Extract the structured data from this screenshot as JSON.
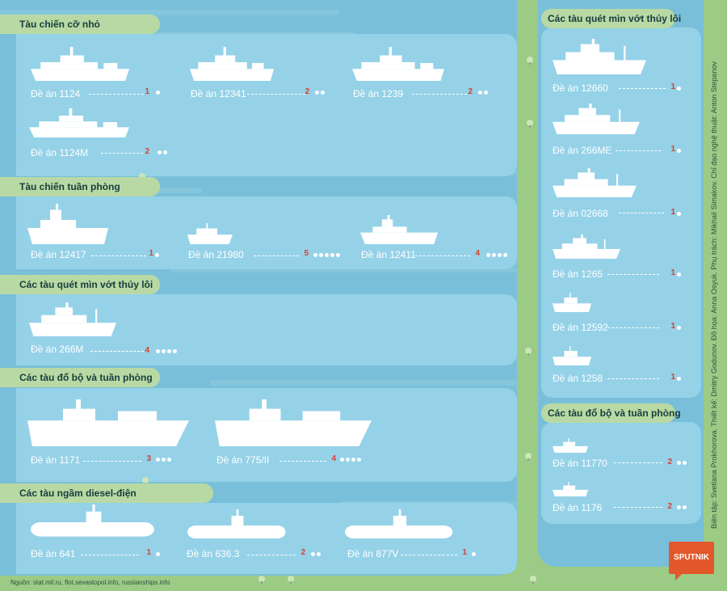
{
  "colors": {
    "background": "#9ccb86",
    "panel": "#79bfd9",
    "card": "#95d2e8",
    "header_tab": "#b9d9a4",
    "count": "#d8402f",
    "ship": "#ffffff",
    "logo": "#e2582b"
  },
  "sections": [
    {
      "title": "Tàu chiến cỡ nhỏ",
      "ships": [
        {
          "name": "Đề án 1124",
          "count": "1",
          "dots": 1,
          "icon": "corvette-icon"
        },
        {
          "name": "Đề án 12341",
          "count": "2",
          "dots": 2,
          "icon": "corvette-icon"
        },
        {
          "name": "Đề án 1239",
          "count": "2",
          "dots": 2,
          "icon": "corvette-icon"
        },
        {
          "name": "Đề án 1124M",
          "count": "2",
          "dots": 2,
          "icon": "corvette-icon"
        }
      ]
    },
    {
      "title": "Tàu chiến tuần phòng",
      "ships": [
        {
          "name": "Đề án 12417",
          "count": "1",
          "dots": 1,
          "icon": "patrol-ship-icon"
        },
        {
          "name": "Đề án 21980",
          "count": "5",
          "dots": 5,
          "icon": "patrol-boat-icon"
        },
        {
          "name": "Đề án 12411",
          "count": "4",
          "dots": 4,
          "icon": "patrol-ship-icon"
        }
      ]
    },
    {
      "title": "Các tàu quét mìn vớt thủy lôi",
      "ships": [
        {
          "name": "Đề án 266M",
          "count": "4",
          "dots": 4,
          "icon": "minesweeper-icon"
        }
      ]
    },
    {
      "title": "Các tàu đổ bộ và tuần phòng",
      "ships": [
        {
          "name": "Đề án 1171",
          "count": "3",
          "dots": 3,
          "icon": "landing-ship-icon"
        },
        {
          "name": "Đề án 775/II",
          "count": "4",
          "dots": 4,
          "icon": "landing-ship-icon"
        }
      ]
    },
    {
      "title": "Các tàu ngầm diesel-điện",
      "ships": [
        {
          "name": "Đề án 641",
          "count": "1",
          "dots": 1,
          "icon": "submarine-icon"
        },
        {
          "name": "Đề án 636.3",
          "count": "2",
          "dots": 2,
          "icon": "submarine-icon"
        },
        {
          "name": "Đề án 877V",
          "count": "1",
          "dots": 1,
          "icon": "submarine-icon"
        }
      ]
    }
  ],
  "right_sections": [
    {
      "title": "Các tàu quét mìn vớt thủy lôi",
      "ships": [
        {
          "name": "Đề án 12660",
          "count": "1",
          "dots": 1,
          "icon": "minesweeper-icon"
        },
        {
          "name": "Đề án 266ME",
          "count": "1",
          "dots": 1,
          "icon": "minesweeper-icon"
        },
        {
          "name": "Đề án 02668",
          "count": "1",
          "dots": 1,
          "icon": "minesweeper-icon"
        },
        {
          "name": "Đề án 1265",
          "count": "1",
          "dots": 1,
          "icon": "minesweeper-icon"
        },
        {
          "name": "Đề án 12592",
          "count": "1",
          "dots": 1,
          "icon": "small-boat-icon"
        },
        {
          "name": "Đề án 1258",
          "count": "1",
          "dots": 1,
          "icon": "small-boat-icon"
        }
      ]
    },
    {
      "title": "Các tàu đổ bộ và tuần phòng",
      "ships": [
        {
          "name": "Đề án 11770",
          "count": "2",
          "dots": 2,
          "icon": "small-boat-icon"
        },
        {
          "name": "Đề án 1176",
          "count": "2",
          "dots": 2,
          "icon": "small-boat-icon"
        }
      ]
    }
  ],
  "source": "Nguồn: stat.mil.ru, flot.sevastopol.info, russianships.info",
  "credits": "Biên tập: Svetlana Prokhorova. Thiết kế: Dmitry Godunov. Đồ họa: Anna Osyuk. Phụ trách: Mikhail Simakov. Chỉ đạo nghệ thuật: Anton Stepanov",
  "logo": "SPUTNIK"
}
